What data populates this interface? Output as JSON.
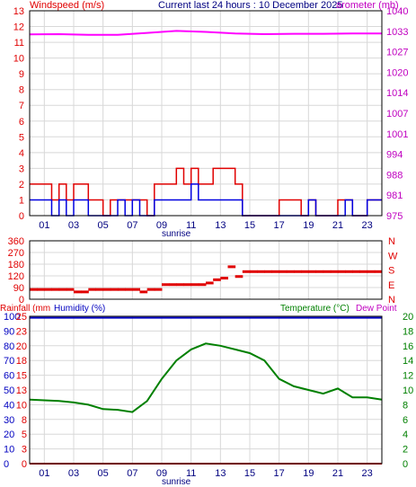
{
  "header": {
    "left_label": "Windspeed (m/s)",
    "center_label": "Current last 24 hours : 10 December 2025",
    "right_label": "arometer (mb)"
  },
  "sunrise_label": "sunrise",
  "x_tick_labels": [
    "01",
    "03",
    "05",
    "07",
    "09",
    "11",
    "13",
    "15",
    "17",
    "19",
    "21",
    "23"
  ],
  "panel_mid": {
    "left_ticks": [
      "360",
      "270",
      "180",
      "120",
      "90",
      "0"
    ],
    "right_ticks": [
      "N",
      "W",
      "S",
      "E",
      "N"
    ]
  },
  "panel_bottom": {
    "rainfall_label": "Rainfall (mm",
    "humidity_label": "Humidity (%)",
    "temperature_label": "Temperature (°C)",
    "dew_point_label": "Dew Point",
    "rain_ticks": [
      "25",
      "23",
      "20",
      "18",
      "15",
      "13",
      "10",
      "8",
      "5",
      "3",
      "0"
    ],
    "humidity_ticks": [
      "100",
      "90",
      "80",
      "70",
      "60",
      "50",
      "40",
      "30",
      "20",
      "10",
      "0"
    ],
    "temp_ticks": [
      "20",
      "18",
      "16",
      "14",
      "12",
      "10",
      "8",
      "6",
      "4",
      "2",
      "0"
    ]
  },
  "colors": {
    "wind_gust": "#e00000",
    "wind_avg": "#0000e0",
    "barometer": "#ff00ff",
    "direction": "#e00000",
    "humidity": "#0000c0",
    "temperature": "#008000",
    "rainfall": "#e00000",
    "grid": "#d8d8d8",
    "axis_text_left": "#e00000",
    "axis_text_right_top": "#c000c0",
    "axis_text_right_bottom": "#008000"
  },
  "chart_data": [
    {
      "type": "line",
      "title": "Current last 24 hours : 10 December 2025",
      "x_unit": "hour of day",
      "ylabel": "Windspeed (m/s)",
      "ylim": [
        0,
        13
      ],
      "y_ticks": [
        0,
        1,
        2,
        3,
        4,
        5,
        6,
        7,
        8,
        9,
        10,
        11,
        12,
        13
      ],
      "y2label": "arometer (mb)",
      "y2_ticks": [
        975,
        981,
        988,
        994,
        1001,
        1007,
        1014,
        1020,
        1027,
        1033,
        1040
      ],
      "series": [
        {
          "name": "Windspeed gust",
          "x": [
            0,
            0.5,
            1,
            1.5,
            2,
            2.5,
            3,
            3.5,
            4,
            4.5,
            5,
            5.5,
            6,
            6.5,
            7,
            7.5,
            8,
            8.5,
            9,
            9.5,
            10,
            10.5,
            11,
            11.5,
            12,
            12.5,
            13,
            13.5,
            14,
            14.5,
            15,
            15.5,
            16,
            16.5,
            17,
            17.5,
            18,
            18.5,
            19,
            19.5,
            20,
            20.5,
            21,
            21.5,
            22,
            22.5,
            23,
            23.5
          ],
          "values": [
            2,
            2,
            2,
            1,
            2,
            1,
            2,
            2,
            1,
            1,
            0,
            1,
            1,
            1,
            1,
            1,
            0,
            2,
            2,
            2,
            3,
            2,
            3,
            2,
            2,
            3,
            3,
            3,
            2,
            0,
            0,
            0,
            0,
            0,
            1,
            1,
            1,
            0,
            1,
            0,
            0,
            0,
            1,
            1,
            0,
            0,
            1,
            1
          ]
        },
        {
          "name": "Windspeed average",
          "x": [
            0,
            0.5,
            1,
            1.5,
            2,
            2.5,
            3,
            3.5,
            4,
            4.5,
            5,
            5.5,
            6,
            6.5,
            7,
            7.5,
            8,
            8.5,
            9,
            9.5,
            10,
            10.5,
            11,
            11.5,
            12,
            12.5,
            13,
            13.5,
            14,
            14.5,
            15,
            15.5,
            16,
            16.5,
            17,
            17.5,
            18,
            18.5,
            19,
            19.5,
            20,
            20.5,
            21,
            21.5,
            22,
            22.5,
            23,
            23.5
          ],
          "values": [
            1,
            1,
            1,
            0,
            1,
            0,
            1,
            1,
            0,
            0,
            0,
            0,
            1,
            0,
            1,
            0,
            0,
            1,
            1,
            1,
            1,
            1,
            2,
            1,
            1,
            1,
            1,
            1,
            1,
            0,
            0,
            0,
            0,
            0,
            0,
            0,
            0,
            0,
            1,
            0,
            0,
            0,
            0,
            1,
            0,
            0,
            1,
            1
          ]
        },
        {
          "name": "Barometer",
          "x": [
            0,
            2,
            4,
            6,
            8,
            10,
            12,
            14,
            16,
            18,
            20,
            22,
            24
          ],
          "values": [
            1032.5,
            1032.6,
            1032.4,
            1032.4,
            1033.0,
            1033.6,
            1033.3,
            1032.8,
            1032.6,
            1032.7,
            1032.7,
            1032.8,
            1032.8
          ]
        }
      ]
    },
    {
      "type": "scatter",
      "x_unit": "hour of day",
      "ylim": [
        0,
        360
      ],
      "y_ticks": [
        0,
        90,
        120,
        180,
        270,
        360
      ],
      "series": [
        {
          "name": "Wind direction",
          "x": [
            0,
            0.5,
            1,
            1.5,
            2,
            2.5,
            3,
            3.5,
            4,
            4.5,
            5,
            5.5,
            6,
            6.5,
            7,
            7.5,
            8,
            8.5,
            9,
            9.5,
            10,
            10.5,
            11,
            11.5,
            12,
            12.5,
            13,
            13.5,
            14,
            14.5,
            15,
            15.5,
            16,
            16.5,
            17,
            17.5,
            18,
            18.5,
            19,
            19.5,
            20,
            20.5,
            21,
            21.5,
            22,
            22.5,
            23,
            23.5
          ],
          "values": [
            60,
            60,
            60,
            60,
            60,
            60,
            45,
            45,
            60,
            60,
            60,
            60,
            60,
            60,
            60,
            45,
            60,
            60,
            90,
            90,
            90,
            90,
            90,
            90,
            100,
            120,
            130,
            200,
            140,
            170,
            170,
            170,
            170,
            170,
            170,
            170,
            170,
            170,
            170,
            170,
            170,
            170,
            170,
            170,
            170,
            170,
            170,
            170
          ]
        }
      ]
    },
    {
      "type": "line",
      "x_unit": "hour of day",
      "ylabel": "Humidity (%)",
      "ylim": [
        0,
        100
      ],
      "y2label": "Temperature (°C)",
      "y2lim": [
        0,
        20
      ],
      "series": [
        {
          "name": "Humidity",
          "x": [
            0,
            24
          ],
          "values": [
            99,
            99
          ]
        },
        {
          "name": "Temperature",
          "x": [
            0,
            1,
            2,
            3,
            4,
            5,
            6,
            7,
            8,
            9,
            10,
            11,
            12,
            13,
            14,
            15,
            16,
            17,
            18,
            19,
            20,
            21,
            22,
            23,
            24
          ],
          "values": [
            8.7,
            8.6,
            8.5,
            8.3,
            8.0,
            7.4,
            7.3,
            7.0,
            8.5,
            11.5,
            14.0,
            15.5,
            16.3,
            16.0,
            15.5,
            15.0,
            14.0,
            11.5,
            10.5,
            10.0,
            9.5,
            10.2,
            9.0,
            9.0,
            8.7
          ]
        },
        {
          "name": "Rainfall",
          "x": [
            0,
            24
          ],
          "values": [
            0,
            0
          ]
        }
      ]
    }
  ]
}
